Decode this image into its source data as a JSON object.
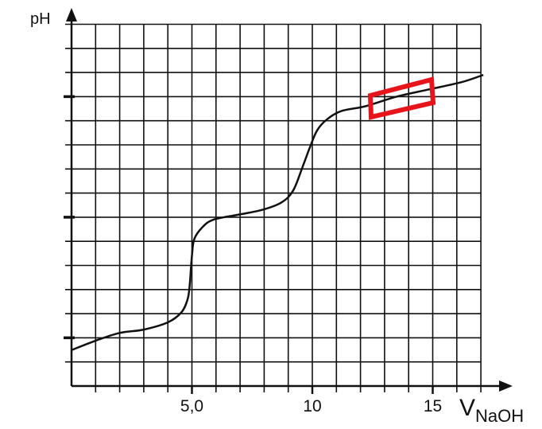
{
  "chart_data": {
    "type": "line",
    "y_label": "pH",
    "x_label": "V",
    "x_label_sub": "NaOH",
    "x": [
      0,
      1,
      2,
      3,
      4,
      4.55,
      4.8,
      4.9,
      5.0,
      5.1,
      5.45,
      5.9,
      6.9,
      7.9,
      8.7,
      9.2,
      9.6,
      9.9,
      10.2,
      10.6,
      11.2,
      12.2,
      13.5,
      14.85,
      16.2,
      17.1
    ],
    "series": [
      {
        "color": "#111111",
        "values": [
          1.49,
          1.88,
          2.2,
          2.34,
          2.64,
          3.04,
          3.53,
          4.1,
          5.4,
          6.1,
          6.6,
          6.9,
          7.1,
          7.3,
          7.6,
          8.1,
          9.1,
          9.9,
          10.6,
          11.05,
          11.4,
          11.6,
          12.0,
          12.3,
          12.6,
          12.9
        ]
      }
    ],
    "xlim": [
      0,
      18
    ],
    "ylim": [
      0,
      15.5
    ],
    "xticks": [
      {
        "value": 5,
        "label": "5,0"
      },
      10,
      15
    ],
    "xgrid": [
      1,
      2,
      3,
      4,
      5,
      6,
      7,
      8,
      9,
      10,
      11,
      12,
      13,
      14,
      15,
      16,
      17
    ],
    "ygrid": [
      1,
      2,
      3,
      4,
      5,
      6,
      7,
      8,
      9,
      10,
      11,
      12,
      13,
      14,
      15
    ],
    "ymajor": [
      2,
      7,
      12
    ],
    "grid": true
  }
}
